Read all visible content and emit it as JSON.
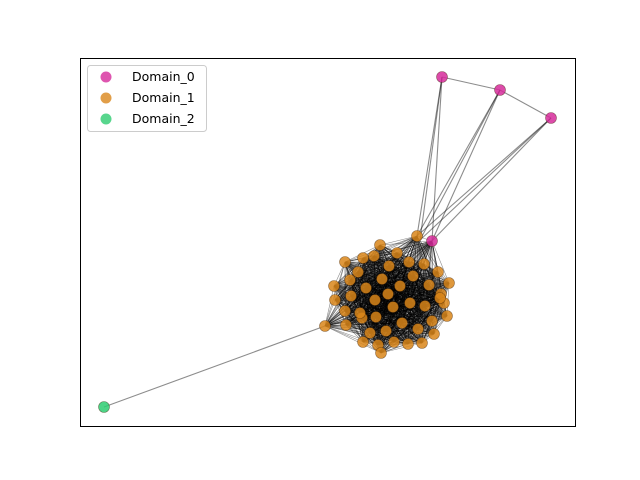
{
  "legend": {
    "entries": [
      {
        "label": "Domain_0",
        "color": "#d62b9b"
      },
      {
        "label": "Domain_1",
        "color": "#d9861a"
      },
      {
        "label": "Domain_2",
        "color": "#2ecc71"
      }
    ]
  },
  "graph": {
    "node_domains": {
      "Domain_0": 4,
      "Domain_1": 48,
      "Domain_2": 1
    },
    "edge_color": "#000000",
    "node_outline": "dark"
  }
}
